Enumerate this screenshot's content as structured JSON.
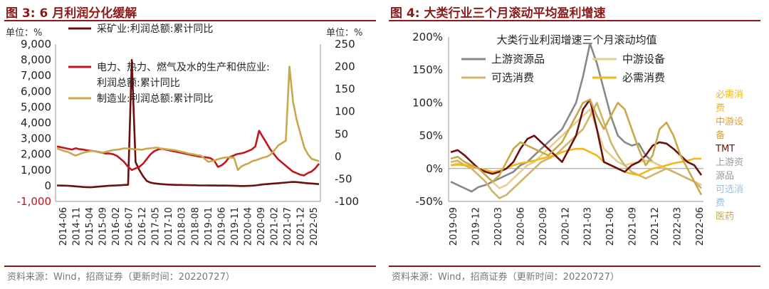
{
  "left": {
    "title": "图 3:  6 月利润分化缓解",
    "source": "资料来源：Wind，招商证券（更新时间：20220727）",
    "chart_data": {
      "type": "line",
      "unit_left": "单位：%",
      "unit_right": "单位：%",
      "x_ticks": [
        "2014-06",
        "2014-11",
        "2015-04",
        "2015-09",
        "2016-02",
        "2016-07",
        "2016-12",
        "2017-05",
        "2017-10",
        "2018-03",
        "2018-08",
        "2019-01",
        "2019-06",
        "2019-11",
        "2020-04",
        "2020-09",
        "2021-02",
        "2021-07",
        "2021-12",
        "2022-05"
      ],
      "ylim_left": [
        -1000,
        9000
      ],
      "yticks_left": [
        "9,000",
        "8,000",
        "7,000",
        "6,000",
        "5,000",
        "4,000",
        "3,000",
        "2,000",
        "1,000",
        "0",
        "-1,000"
      ],
      "ylim_right": [
        -100,
        250
      ],
      "yticks_right": [
        "250",
        "200",
        "150",
        "100",
        "50",
        "0",
        "-50",
        "-100"
      ],
      "series": [
        {
          "name": "采矿业:利润总额:累计同比",
          "axis": "left",
          "color": "#6b0f0f",
          "values": [
            20,
            10,
            5,
            -5,
            -20,
            -40,
            -60,
            -80,
            -90,
            -100,
            -80,
            -60,
            -40,
            -20,
            0,
            10,
            20,
            30,
            50,
            60,
            8000,
            1500,
            1000,
            600,
            300,
            200,
            150,
            120,
            100,
            80,
            70,
            60,
            50,
            50,
            40,
            40,
            30,
            30,
            20,
            20,
            20,
            15,
            15,
            10,
            10,
            10,
            5,
            0,
            -10,
            -20,
            -20,
            -10,
            0,
            20,
            50,
            80,
            100,
            120,
            140,
            160,
            180,
            200,
            220,
            240,
            230,
            210,
            180,
            160,
            140,
            120,
            100
          ]
        },
        {
          "name": "电力、热力、燃气及水的生产和供应业:利润总额:累计同比",
          "axis": "left",
          "color": "#c0161c",
          "values": [
            2500,
            2450,
            2400,
            2350,
            2300,
            2380,
            2320,
            2300,
            2250,
            2220,
            2200,
            2150,
            2100,
            2050,
            2050,
            2000,
            1900,
            1700,
            1500,
            1200,
            1000,
            1100,
            1200,
            1400,
            1700,
            2000,
            2200,
            2300,
            2350,
            2300,
            2250,
            2200,
            2150,
            2100,
            2050,
            2000,
            1950,
            1900,
            1850,
            1820,
            1800,
            1750,
            1600,
            1200,
            1300,
            1500,
            1800,
            1900,
            2000,
            2050,
            2100,
            2200,
            2300,
            2500,
            3500,
            3100,
            2700,
            2300,
            2000,
            1700,
            1500,
            1300,
            1100,
            900,
            800,
            700,
            650,
            800,
            900,
            1100,
            1400
          ]
        },
        {
          "name": "制造业:利润总额:累计同比",
          "axis": "right",
          "color": "#c9a84c",
          "values": [
            18,
            15,
            12,
            10,
            6,
            2,
            5,
            8,
            10,
            12,
            12,
            10,
            8,
            10,
            12,
            14,
            15,
            16,
            18,
            18,
            17,
            16,
            16,
            15,
            17,
            18,
            19,
            20,
            18,
            17,
            16,
            15,
            14,
            12,
            10,
            8,
            6,
            5,
            3,
            2,
            -5,
            -12,
            -10,
            -8,
            -5,
            -3,
            -2,
            -2,
            -3,
            -30,
            -22,
            -18,
            -15,
            -10,
            -8,
            -5,
            -2,
            0,
            5,
            15,
            25,
            30,
            35,
            200,
            120,
            80,
            50,
            20,
            5,
            -5,
            -8,
            -10
          ]
        }
      ]
    }
  },
  "right": {
    "title": "图 4:   大类行业三个月滚动平均盈利增速",
    "source": "资料来源：Wind，招商证券（更新时间：20220727）",
    "chart_data": {
      "type": "line",
      "title": "大类行业利润增速三个月滚动均值",
      "x_ticks": [
        "2019-09",
        "2019-12",
        "2020-03",
        "2020-06",
        "2020-09",
        "2020-12",
        "2021-03",
        "2021-06",
        "2021-09",
        "2021-12",
        "2022-03",
        "2022-06"
      ],
      "ylim": [
        -50,
        200
      ],
      "yticks": [
        "200%",
        "150%",
        "100%",
        "50%",
        "0%",
        "-50%"
      ],
      "legend_in": [
        "上游资源品",
        "中游设备",
        "可选消费",
        "必需消费"
      ],
      "side_labels": [
        {
          "text": "必需消费",
          "color": "#f0b81a"
        },
        {
          "text": "中游设备",
          "color": "#d9a23a"
        },
        {
          "text": "TMT",
          "color": "#6b0f0f"
        },
        {
          "text": "上游资源品",
          "color": "#9a9a9a"
        },
        {
          "text": "可选消费",
          "color": "#9cc0dd"
        },
        {
          "text": "医药",
          "color": "#c9a84c"
        }
      ],
      "series": [
        {
          "name": "上游资源品",
          "color": "#888888",
          "values": [
            -20,
            -25,
            -30,
            -35,
            -28,
            -25,
            -20,
            -15,
            -10,
            -5,
            5,
            10,
            20,
            30,
            40,
            50,
            60,
            80,
            100,
            140,
            190,
            160,
            120,
            80,
            50,
            40,
            35,
            38,
            20,
            10,
            5,
            0,
            -5,
            -10,
            -15,
            -20,
            -25
          ]
        },
        {
          "name": "中游设备",
          "color": "#e4cf8e",
          "values": [
            5,
            8,
            6,
            4,
            0,
            -10,
            -20,
            -30,
            -25,
            -15,
            -5,
            5,
            10,
            20,
            30,
            40,
            50,
            60,
            70,
            80,
            90,
            60,
            30,
            20,
            10,
            5,
            8,
            10,
            12,
            10,
            5,
            0,
            -5,
            -10,
            -15,
            -20,
            -25
          ]
        },
        {
          "name": "可选消费",
          "color": "#cfb56a",
          "values": [
            10,
            12,
            5,
            0,
            -10,
            -20,
            -35,
            -45,
            -40,
            -30,
            -20,
            -10,
            0,
            10,
            15,
            20,
            30,
            40,
            50,
            60,
            80,
            100,
            70,
            40,
            20,
            5,
            -5,
            -10,
            -15,
            -10,
            -5,
            0,
            -5,
            -10,
            -15,
            -20,
            -30
          ]
        },
        {
          "name": "必需消费",
          "color": "#f0b81a",
          "values": [
            5,
            6,
            5,
            3,
            0,
            -2,
            -5,
            -3,
            0,
            5,
            8,
            10,
            12,
            15,
            18,
            20,
            25,
            28,
            30,
            30,
            25,
            20,
            10,
            5,
            0,
            -5,
            -8,
            -10,
            -5,
            0,
            2,
            5,
            8,
            10,
            12,
            15,
            15
          ]
        },
        {
          "name": "TMT",
          "color": "#6b0f0f",
          "values": [
            25,
            28,
            20,
            10,
            0,
            -5,
            -8,
            -5,
            0,
            10,
            30,
            45,
            50,
            40,
            30,
            20,
            10,
            30,
            50,
            90,
            105,
            60,
            10,
            5,
            0,
            -5,
            5,
            10,
            20,
            35,
            40,
            38,
            30,
            20,
            10,
            5,
            -10
          ]
        },
        {
          "name": "医药",
          "color": "#c9a84c",
          "values": [
            15,
            18,
            10,
            5,
            0,
            -10,
            -20,
            -10,
            10,
            30,
            40,
            35,
            30,
            25,
            20,
            30,
            40,
            60,
            80,
            100,
            105,
            80,
            60,
            80,
            100,
            90,
            60,
            30,
            5,
            20,
            60,
            70,
            50,
            20,
            0,
            -20,
            -40
          ]
        }
      ]
    }
  }
}
